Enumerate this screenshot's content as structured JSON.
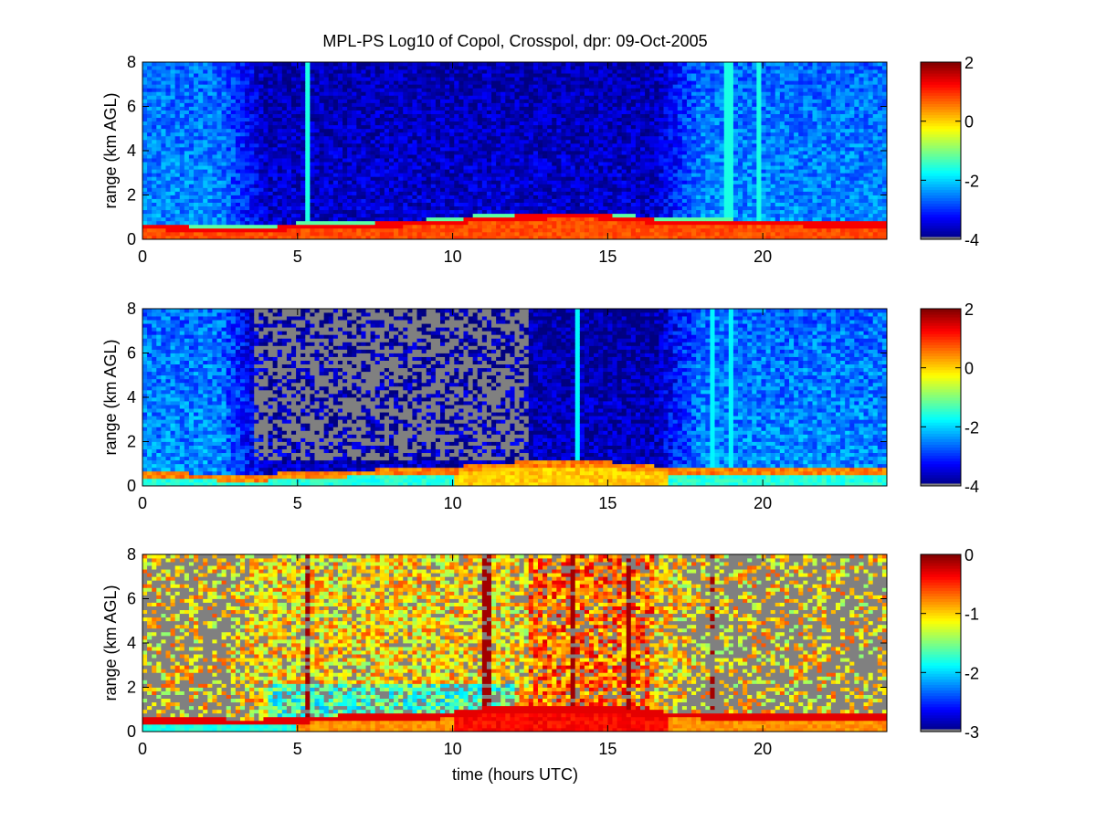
{
  "figure_title": "MPL-PS Log10 of Copol, Crosspol, dpr: 09-Oct-2005",
  "chart_data": [
    {
      "type": "heatmap",
      "title": "MPL-PS Log10 of Copol, Crosspol, dpr: 09-Oct-2005",
      "xlabel": "",
      "ylabel": "range (km AGL)",
      "xlim": [
        0,
        24
      ],
      "ylim": [
        0,
        8
      ],
      "xticks": [
        0,
        5,
        10,
        15,
        20
      ],
      "yticks": [
        0,
        2,
        4,
        6,
        8
      ],
      "colorbar": {
        "ticks": [
          2,
          0,
          -2,
          -4
        ],
        "range": [
          -4,
          2
        ],
        "colormap": "jet"
      },
      "boundary_layer_top_km": [
        [
          0,
          0.6
        ],
        [
          3.5,
          0.45
        ],
        [
          5,
          0.6
        ],
        [
          10,
          0.8
        ],
        [
          11,
          1.0
        ],
        [
          14,
          1.1
        ],
        [
          15,
          1.05
        ],
        [
          17,
          0.8
        ],
        [
          20,
          0.75
        ],
        [
          24,
          0.7
        ]
      ],
      "vertical_streaks_hours": [
        5.3,
        18.9,
        19.9
      ]
    },
    {
      "type": "heatmap",
      "title": "",
      "xlabel": "",
      "ylabel": "range (km AGL)",
      "xlim": [
        0,
        24
      ],
      "ylim": [
        0,
        8
      ],
      "xticks": [
        0,
        5,
        10,
        15,
        20
      ],
      "yticks": [
        0,
        2,
        4,
        6,
        8
      ],
      "colorbar": {
        "ticks": [
          2,
          0,
          -2,
          -4
        ],
        "range": [
          -4,
          2
        ],
        "colormap": "jet"
      },
      "boundary_layer_top_km": [
        [
          0,
          0.6
        ],
        [
          3.5,
          0.45
        ],
        [
          5,
          0.6
        ],
        [
          10,
          0.8
        ],
        [
          11,
          1.0
        ],
        [
          14,
          1.1
        ],
        [
          15,
          1.05
        ],
        [
          17,
          0.8
        ],
        [
          20,
          0.75
        ],
        [
          24,
          0.7
        ]
      ],
      "missing_region_hours": [
        3.6,
        12.5
      ],
      "missing_region_km": [
        1.2,
        8
      ],
      "vertical_streaks_hours": [
        14.0,
        18.4,
        19.0
      ]
    },
    {
      "type": "heatmap",
      "title": "",
      "xlabel": "time (hours UTC)",
      "ylabel": "range (km AGL)",
      "xlim": [
        0,
        24
      ],
      "ylim": [
        0,
        8
      ],
      "xticks": [
        0,
        5,
        10,
        15,
        20
      ],
      "yticks": [
        0,
        2,
        4,
        6,
        8
      ],
      "colorbar": {
        "ticks": [
          0,
          -1,
          -2,
          -3
        ],
        "range": [
          -3,
          0
        ],
        "colormap": "jet"
      },
      "boundary_layer_top_km": [
        [
          0,
          0.6
        ],
        [
          3.5,
          0.45
        ],
        [
          5,
          0.6
        ],
        [
          10,
          0.8
        ],
        [
          11,
          1.0
        ],
        [
          14,
          1.1
        ],
        [
          15,
          1.05
        ],
        [
          17,
          0.8
        ],
        [
          20,
          0.75
        ],
        [
          24,
          0.7
        ]
      ],
      "vertical_streaks_hours": [
        5.3,
        11.1,
        13.9,
        15.7,
        18.4
      ]
    }
  ],
  "colors": {
    "missing": "#808080",
    "axis": "#000000",
    "background": "#ffffff"
  }
}
